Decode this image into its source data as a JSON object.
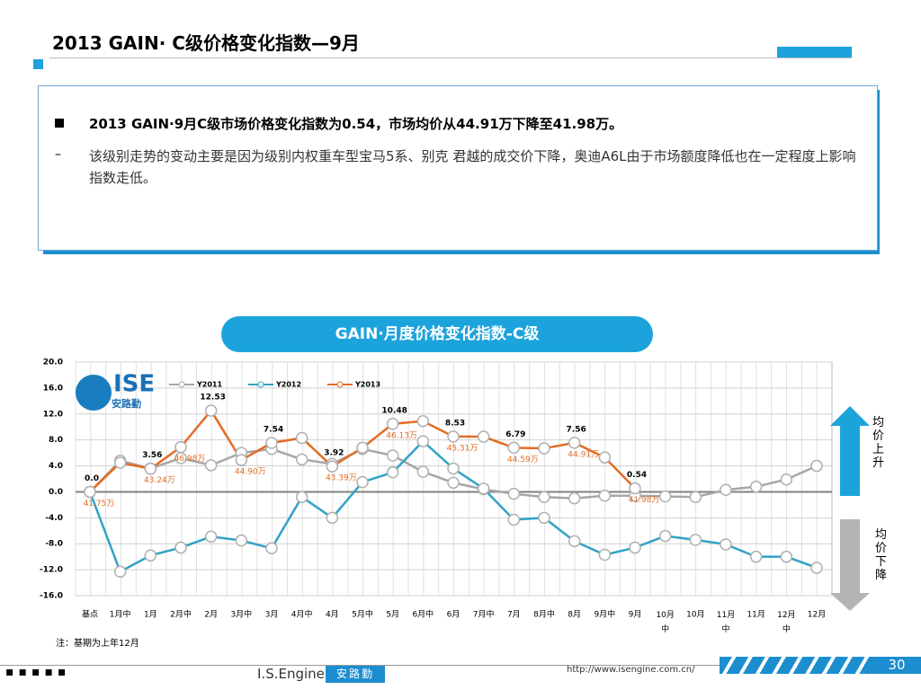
{
  "header": {
    "title": "2013 GAIN· C级价格变化指数—9月"
  },
  "summary": {
    "bullet": "2013 GAIN·9月C级市场价格变化指数为0.54，市场均价从44.91万下降至41.98万。",
    "detail": "该级别走势的变动主要是因为级别内权重车型宝马5系、别克 君越的成交价下降，奥迪A6L由于市场额度降低也在一定程度上影响指数走低。"
  },
  "logo": {
    "name": "ISE",
    "subname": "安路勤"
  },
  "side_labels": {
    "up": "均价上升",
    "down": "均价下降"
  },
  "note": "注：基期为上年12月",
  "footer": {
    "brand": "I.S.Engine",
    "brand_cn": "安路勤",
    "url": "http://www.isengine.com.cn/",
    "page": "30"
  },
  "chart_data": {
    "type": "line",
    "title": "GAIN·月度价格变化指数-C级",
    "categories": [
      "基点",
      "1月中",
      "1月",
      "2月中",
      "2月",
      "3月中",
      "3月",
      "4月中",
      "4月",
      "5月中",
      "5月",
      "6月中",
      "6月",
      "7月中",
      "7月",
      "8月中",
      "8月",
      "9月中",
      "9月",
      "10月中",
      "10月",
      "11月中",
      "11月",
      "12月中",
      "12月"
    ],
    "series": [
      {
        "name": "Y2011",
        "color": "#a6a6a6",
        "values": [
          0,
          4.8,
          3.6,
          5.2,
          4.1,
          6.0,
          6.6,
          5.0,
          4.3,
          6.6,
          5.6,
          3.1,
          1.4,
          0.4,
          -0.3,
          -0.8,
          -1.0,
          -0.6,
          -0.6,
          -0.7,
          -0.8,
          0.3,
          0.8,
          1.9,
          4.0
        ]
      },
      {
        "name": "Y2012",
        "color": "#31a3c6",
        "values": [
          0,
          -12.3,
          -9.8,
          -8.6,
          -6.9,
          -7.5,
          -8.7,
          -0.8,
          -4.0,
          1.5,
          3.0,
          7.8,
          3.6,
          0.5,
          -4.3,
          -4.0,
          -7.6,
          -9.7,
          -8.6,
          -6.8,
          -7.4,
          -8.1,
          -10.0,
          -10.0,
          -11.7
        ]
      },
      {
        "name": "Y2013",
        "color": "#e36c24",
        "values": [
          0,
          4.5,
          3.56,
          6.9,
          12.53,
          4.9,
          7.54,
          8.3,
          3.92,
          6.8,
          10.48,
          10.9,
          8.53,
          8.5,
          6.79,
          6.7,
          7.56,
          5.3,
          0.54,
          null,
          null,
          null,
          null,
          null,
          null
        ],
        "value_labels": [
          "0.0",
          null,
          "3.56",
          null,
          "12.53",
          null,
          "7.54",
          null,
          "3.92",
          null,
          "10.48",
          null,
          "8.53",
          null,
          "6.79",
          null,
          "7.56",
          null,
          "0.54",
          null,
          null,
          null,
          null,
          null,
          null
        ],
        "price_labels": [
          "41.75万",
          null,
          "43.24万",
          "46.98万",
          null,
          "44.90万",
          null,
          null,
          "43.39万",
          null,
          "46.13万",
          null,
          "45.31万",
          null,
          "44.59万",
          null,
          "44.91万",
          null,
          "41.98万",
          null,
          null,
          null,
          null,
          null,
          null
        ]
      }
    ],
    "ylim": [
      -16,
      20
    ],
    "yticks": [
      {
        "value": -16,
        "label": "-16.0"
      },
      {
        "value": -12,
        "label": "-12.0"
      },
      {
        "value": -8,
        "label": "-8.0"
      },
      {
        "value": -4,
        "label": "-4.0"
      },
      {
        "value": 0,
        "label": "0.0"
      },
      {
        "value": 4,
        "label": "4.0"
      },
      {
        "value": 8,
        "label": "8.0"
      },
      {
        "value": 12,
        "label": "12.0"
      },
      {
        "value": 16,
        "label": "16.0"
      },
      {
        "value": 20,
        "label": "20.0"
      }
    ],
    "grid": true
  }
}
